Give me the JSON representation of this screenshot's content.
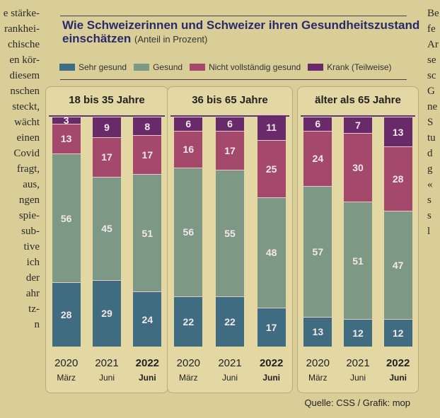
{
  "left_column_text": [
    "e stärke-",
    "rankhei-",
    "chische",
    "en kör-",
    "diesem",
    "nschen",
    "steckt,",
    "wächt",
    "einen",
    "Covid",
    "fragt,",
    "aus,",
    "ngen",
    "spie-",
    "sub-",
    "tive",
    "ich",
    "der",
    "ahr",
    "tz-",
    "",
    "",
    "n"
  ],
  "right_column_text": [
    "Be",
    "fe",
    "Ar",
    "se",
    "sc",
    "G",
    "ne",
    "S",
    "tu",
    "",
    "d",
    "g",
    "«",
    "s",
    "s",
    "l"
  ],
  "chart_data": {
    "type": "bar",
    "stacked": true,
    "title": "Wie Schweizerinnen und Schweizer ihren Gesundheitszustand einschätzen",
    "subtitle": "(Anteil in Prozent)",
    "legend_position": "top",
    "series_names": [
      "Sehr gesund",
      "Gesund",
      "Nicht vollständig gesund",
      "Krank (Teilweise)"
    ],
    "colors": [
      "#3f6c80",
      "#7e9886",
      "#a5496c",
      "#682a68"
    ],
    "ylim": [
      0,
      100
    ],
    "panels": [
      {
        "title": "18 bis 35 Jahre",
        "bars": [
          {
            "year": "2020",
            "month": "März",
            "bold": false,
            "values": [
              28,
              56,
              13,
              3
            ]
          },
          {
            "year": "2021",
            "month": "Juni",
            "bold": false,
            "values": [
              29,
              45,
              17,
              9
            ]
          },
          {
            "year": "2022",
            "month": "Juni",
            "bold": true,
            "values": [
              24,
              51,
              17,
              8
            ]
          }
        ]
      },
      {
        "title": "36 bis 65 Jahre",
        "bars": [
          {
            "year": "2020",
            "month": "März",
            "bold": false,
            "values": [
              22,
              56,
              16,
              6
            ]
          },
          {
            "year": "2021",
            "month": "Juni",
            "bold": false,
            "values": [
              22,
              55,
              17,
              6
            ]
          },
          {
            "year": "2022",
            "month": "Juni",
            "bold": true,
            "values": [
              17,
              48,
              25,
              11
            ]
          }
        ]
      },
      {
        "title": "älter als 65 Jahre",
        "bars": [
          {
            "year": "2020",
            "month": "März",
            "bold": false,
            "values": [
              13,
              57,
              24,
              6
            ]
          },
          {
            "year": "2021",
            "month": "Juni",
            "bold": false,
            "values": [
              12,
              51,
              30,
              7
            ]
          },
          {
            "year": "2022",
            "month": "Juni",
            "bold": true,
            "values": [
              12,
              47,
              28,
              13
            ]
          }
        ]
      }
    ],
    "source": "Quelle: CSS / Grafik: mop"
  }
}
